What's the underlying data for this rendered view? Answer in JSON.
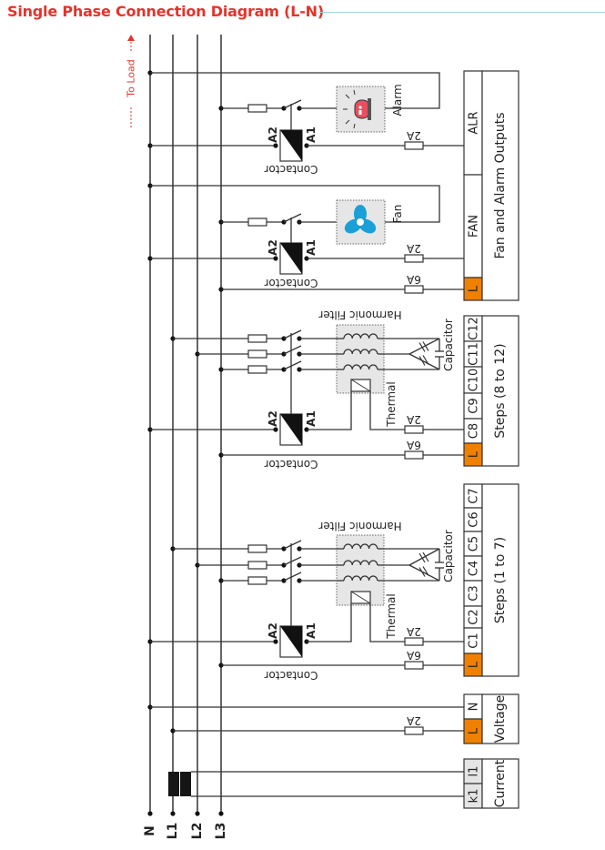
{
  "title": "Single Phase Connection Diagram (L-N)",
  "to_load": "To Load",
  "bus_labels": [
    "N",
    "L1",
    "L2",
    "L3"
  ],
  "components": {
    "contactor": "Contactor",
    "coil_a1": "A1",
    "coil_a2": "A2",
    "alarm": "Alarm",
    "fan": "Fan",
    "harmonic_filter": "Harmonic Filter",
    "capacitor": "Capacitor",
    "thermal": "Thermal"
  },
  "fuses": {
    "small": "2A",
    "large": "6A"
  },
  "terminals": {
    "fan_alarm": {
      "label": "Fan and Alarm Outputs",
      "cells": [
        "ALR",
        "FAN",
        "L"
      ]
    },
    "steps_8_12": {
      "label": "Steps (8 to 12)",
      "cells": [
        "C12",
        "C11",
        "C10",
        "C9",
        "C8",
        "L"
      ]
    },
    "steps_1_7": {
      "label": "Steps (1 to 7)",
      "cells": [
        "C7",
        "C6",
        "C5",
        "C4",
        "C3",
        "C2",
        "C1",
        "L"
      ]
    },
    "voltage": {
      "label": "Voltage",
      "cells": [
        "N",
        "L"
      ]
    },
    "current": {
      "label": "Current",
      "cells": [
        "l1",
        "k1"
      ]
    }
  },
  "icons": {
    "alarm": "alarm-beacon-icon",
    "fan": "fan-icon"
  },
  "colors": {
    "title": "#e5332a",
    "to_load": "#e5332a",
    "terminal_l": "#f08000",
    "current_cell": "#e4e4e4",
    "fan_icon": "#1a9fd8",
    "alarm_icon": "#e8505f",
    "wire": "#333333",
    "component_box": "#e6e6e6"
  }
}
